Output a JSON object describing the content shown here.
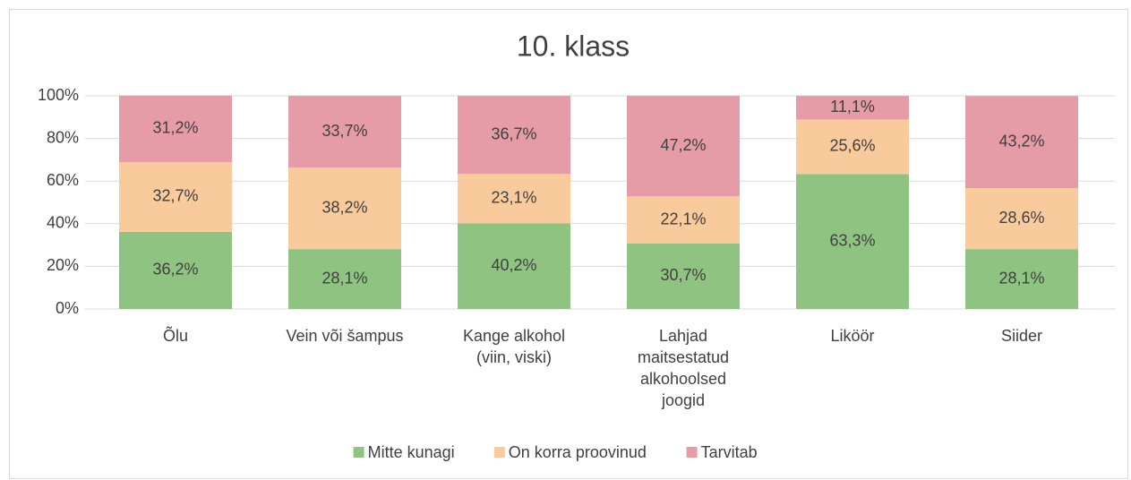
{
  "chart_data": {
    "type": "stacked_bar",
    "title": "10. klass",
    "categories": [
      "Õlu",
      "Vein või šampus",
      "Kange alkohol\n(viin, viski)",
      "Lahjad\nmaitsestatud\nalkohoolsed\njoogid",
      "Liköör",
      "Siider"
    ],
    "series": [
      {
        "name": "Mitte kunagi",
        "color": "#8fc382",
        "values": [
          36.2,
          28.1,
          40.2,
          30.7,
          63.3,
          28.1
        ],
        "value_labels": [
          "36,2%",
          "28,1%",
          "40,2%",
          "30,7%",
          "63,3%",
          "28,1%"
        ]
      },
      {
        "name": "On korra proovinud",
        "color": "#f9ca9b",
        "values": [
          32.7,
          38.2,
          23.1,
          22.1,
          25.6,
          28.6
        ],
        "value_labels": [
          "32,7%",
          "38,2%",
          "23,1%",
          "22,1%",
          "25,6%",
          "28,6%"
        ]
      },
      {
        "name": "Tarvitab",
        "color": "#e59ca6",
        "values": [
          31.2,
          33.7,
          36.7,
          47.2,
          11.1,
          43.2
        ],
        "value_labels": [
          "31,2%",
          "33,7%",
          "36,7%",
          "47,2%",
          "11,1%",
          "43,2%"
        ]
      }
    ],
    "ylim": [
      0,
      100
    ],
    "yticks": [
      {
        "value": 0,
        "label": "0%"
      },
      {
        "value": 20,
        "label": "20%"
      },
      {
        "value": 40,
        "label": "40%"
      },
      {
        "value": 60,
        "label": "60%"
      },
      {
        "value": 80,
        "label": "80%"
      },
      {
        "value": 100,
        "label": "100%"
      }
    ],
    "grid": true,
    "legend": "bottom"
  }
}
